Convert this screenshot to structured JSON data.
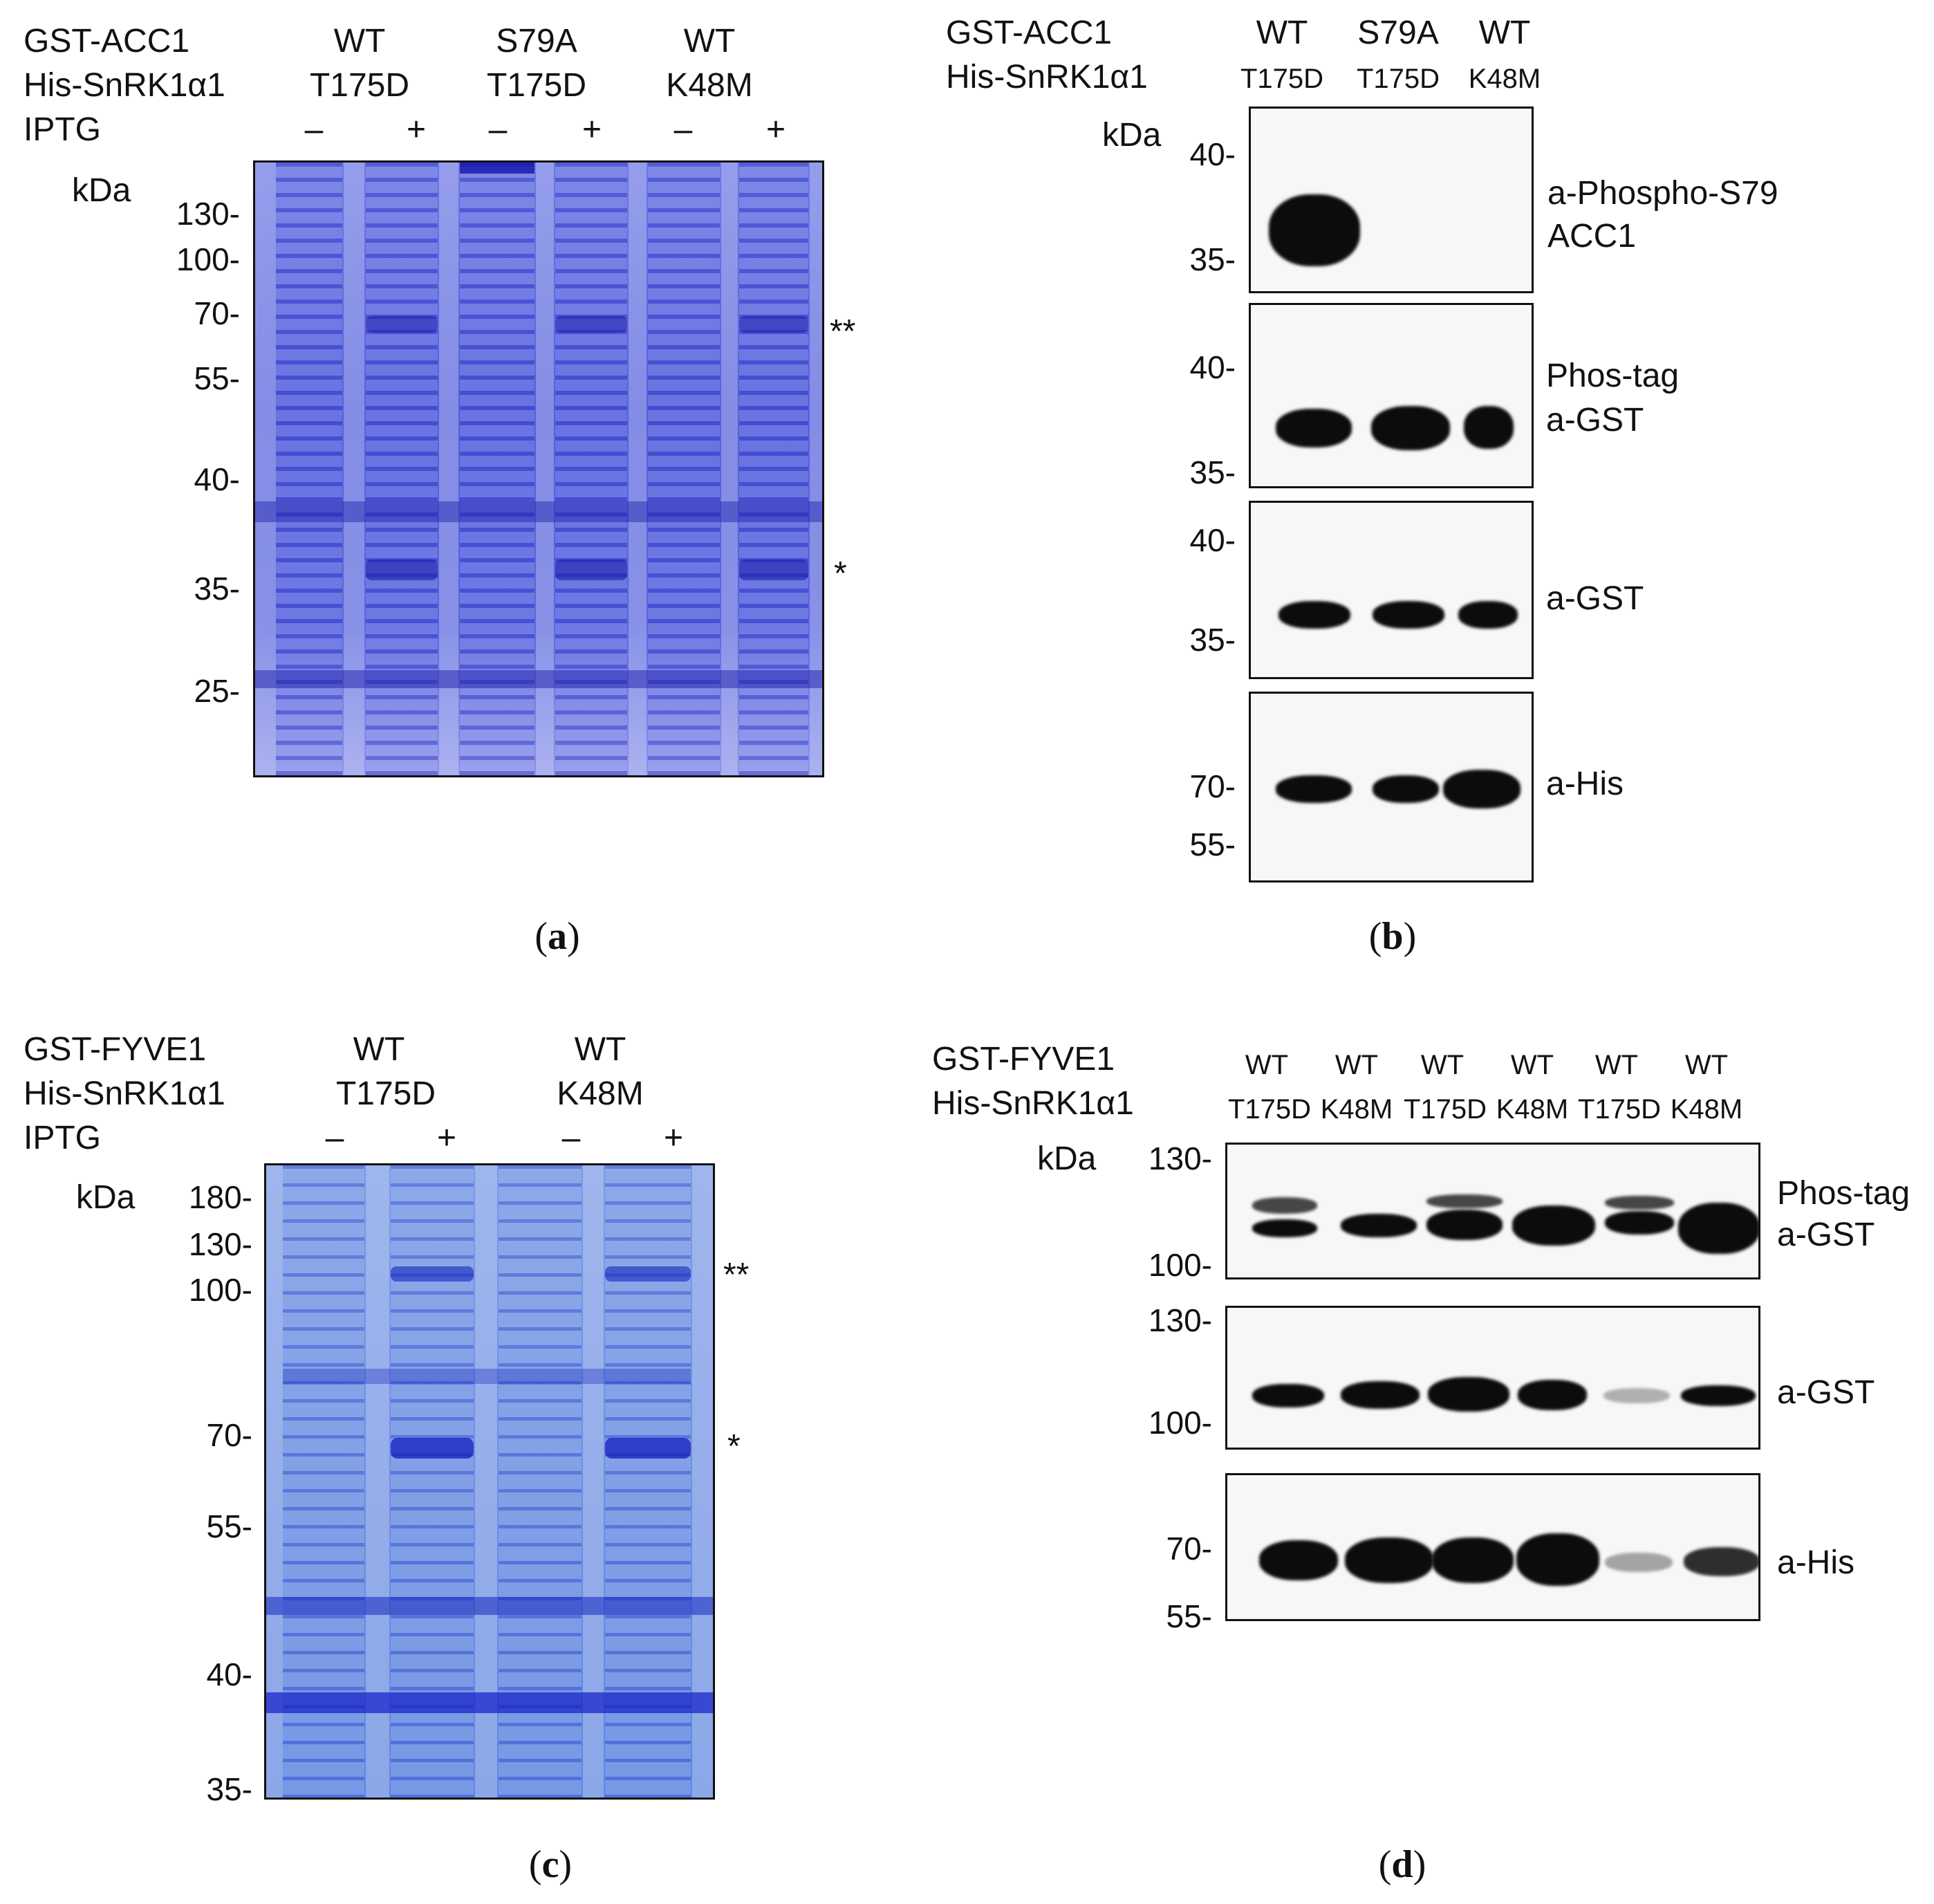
{
  "panel_a": {
    "caption_letter": "a",
    "row_labels": [
      "GST-ACC1",
      "His-SnRK1α1",
      "IPTG"
    ],
    "groups": [
      {
        "top": "WT",
        "bottom": "T175D"
      },
      {
        "top": "S79A",
        "bottom": "T175D"
      },
      {
        "top": "WT",
        "bottom": "K48M"
      }
    ],
    "iptg": [
      "–",
      "+",
      "–",
      "+",
      "–",
      "+"
    ],
    "kda_label": "kDa",
    "markers": [
      "130-",
      "100-",
      "70-",
      "55-",
      "40-",
      "35-",
      "25-"
    ],
    "annotations": [
      "**",
      "*"
    ]
  },
  "panel_b": {
    "caption_letter": "b",
    "row_labels": [
      "GST-ACC1",
      "His-SnRK1α1"
    ],
    "groups": [
      {
        "top": "WT",
        "bottom": "T175D"
      },
      {
        "top": "S79A",
        "bottom": "T175D"
      },
      {
        "top": "WT",
        "bottom": "K48M"
      }
    ],
    "kda_label": "kDa",
    "blots": [
      {
        "label_lines": [
          "a-Phospho-S79",
          "ACC1"
        ],
        "markers": [
          "40-",
          "35-"
        ]
      },
      {
        "label_lines": [
          "Phos-tag",
          "a-GST"
        ],
        "markers": [
          "40-",
          "35-"
        ]
      },
      {
        "label_lines": [
          "a-GST"
        ],
        "markers": [
          "40-",
          "35-"
        ]
      },
      {
        "label_lines": [
          "a-His"
        ],
        "markers": [
          "70-",
          "55-"
        ]
      }
    ]
  },
  "panel_c": {
    "caption_letter": "c",
    "row_labels": [
      "GST-FYVE1",
      "His-SnRK1α1",
      "IPTG"
    ],
    "groups": [
      {
        "top": "WT",
        "bottom": "T175D"
      },
      {
        "top": "WT",
        "bottom": "K48M"
      }
    ],
    "iptg": [
      "–",
      "+",
      "–",
      "+"
    ],
    "kda_label": "kDa",
    "markers": [
      "180-",
      "130-",
      "100-",
      "70-",
      "55-",
      "40-",
      "35-"
    ],
    "annotations": [
      "**",
      "*"
    ]
  },
  "panel_d": {
    "caption_letter": "d",
    "row_labels": [
      "GST-FYVE1",
      "His-SnRK1α1"
    ],
    "lanes": [
      {
        "top": "WT",
        "bottom": "T175D"
      },
      {
        "top": "WT",
        "bottom": "K48M"
      },
      {
        "top": "WT",
        "bottom": "T175D"
      },
      {
        "top": "WT",
        "bottom": "K48M"
      },
      {
        "top": "WT",
        "bottom": "T175D"
      },
      {
        "top": "WT",
        "bottom": "K48M"
      }
    ],
    "kda_label": "kDa",
    "blots": [
      {
        "label_lines": [
          "Phos-tag",
          "a-GST"
        ],
        "markers": [
          "130-",
          "100-"
        ]
      },
      {
        "label_lines": [
          "a-GST"
        ],
        "markers": [
          "130-",
          "100-"
        ]
      },
      {
        "label_lines": [
          "a-His"
        ],
        "markers": [
          "70-",
          "55-"
        ]
      }
    ]
  }
}
